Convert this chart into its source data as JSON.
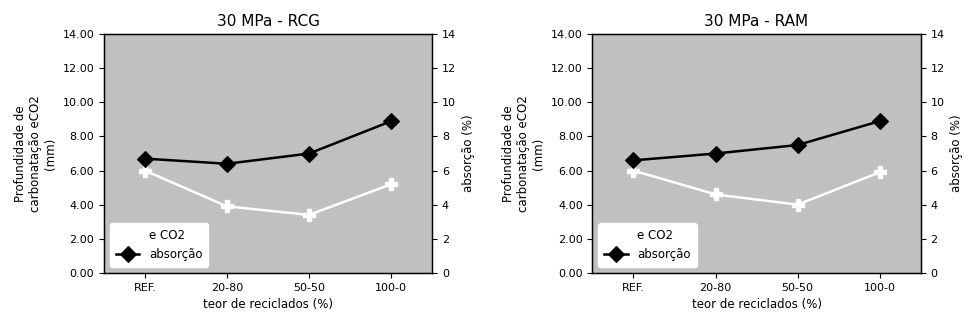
{
  "charts": [
    {
      "title": "30 MPa - RCG",
      "eco2": [
        6.0,
        3.9,
        3.4,
        5.2
      ],
      "absorcao": [
        6.7,
        6.4,
        7.0,
        8.9
      ]
    },
    {
      "title": "30 MPa - RAM",
      "eco2": [
        6.0,
        4.6,
        4.0,
        5.9
      ],
      "absorcao": [
        6.6,
        7.0,
        7.5,
        8.9
      ]
    }
  ],
  "x_labels": [
    "REF.",
    "20-80",
    "50-50",
    "100-0"
  ],
  "xlabel": "teor de reciclados (%)",
  "ylabel_left": "Profundidade de\ncarbonatação eCO2\n(mm)",
  "ylabel_right": "absorção (%)",
  "ylim_left": [
    0,
    14
  ],
  "ylim_right": [
    0,
    14
  ],
  "yticks_left": [
    0.0,
    2.0,
    4.0,
    6.0,
    8.0,
    10.0,
    12.0,
    14.0
  ],
  "yticks_right": [
    0,
    2,
    4,
    6,
    8,
    10,
    12,
    14
  ],
  "legend_eco2": "e CO2",
  "legend_absorcao": "absorção",
  "bg_color": "#c0c0c0",
  "outer_bg": "#ffffff",
  "line_color_eco2": "white",
  "line_color_abs": "black",
  "marker_eco2": "P",
  "marker_abs": "D",
  "title_fontsize": 11,
  "label_fontsize": 8.5,
  "tick_fontsize": 8,
  "legend_fontsize": 8.5
}
